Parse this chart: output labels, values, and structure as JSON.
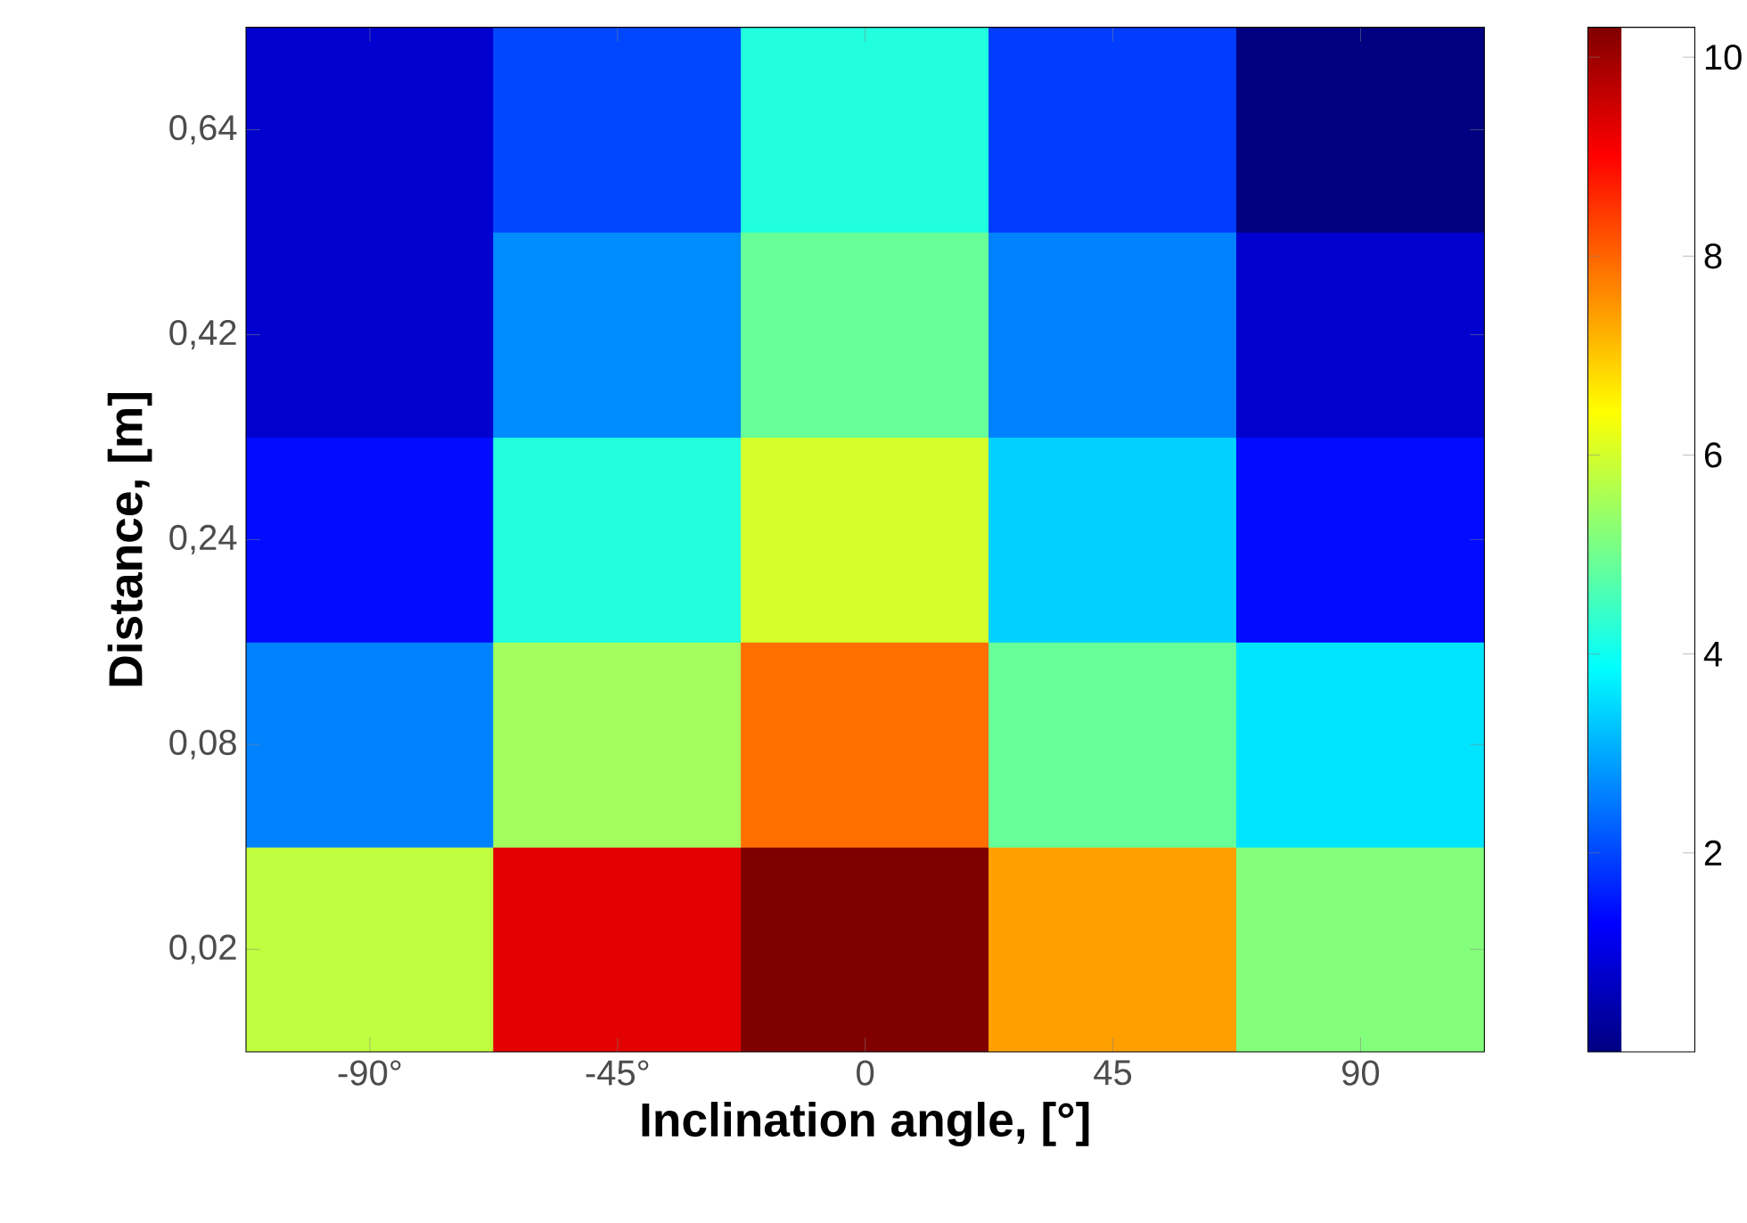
{
  "chart_data": {
    "type": "heatmap",
    "xlabel": "Inclination angle, [°]",
    "ylabel": "Distance, [m]",
    "categories": [
      "-90°",
      "-45°",
      "0",
      "45",
      "90"
    ],
    "y_categories": [
      "0,64",
      "0,42",
      "0,24",
      "0,08",
      "0,02"
    ],
    "cells": [
      [
        0.8,
        2.0,
        4.2,
        1.9,
        0.0
      ],
      [
        0.8,
        2.7,
        4.9,
        2.6,
        0.8
      ],
      [
        1.4,
        4.2,
        6.0,
        3.4,
        1.4
      ],
      [
        2.6,
        5.5,
        7.9,
        4.9,
        3.6
      ],
      [
        5.8,
        9.3,
        10.3,
        7.4,
        5.2
      ]
    ],
    "clim": [
      0,
      10.3
    ],
    "cticks": [
      2,
      4,
      6,
      8,
      10
    ]
  }
}
